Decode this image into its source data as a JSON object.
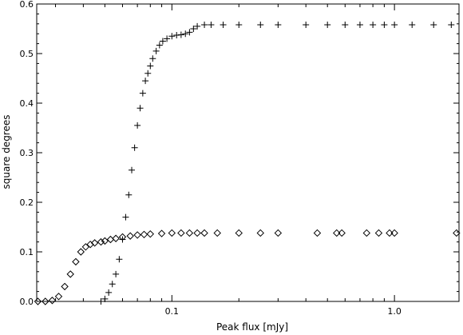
{
  "chart_data": {
    "type": "scatter",
    "title": "",
    "xlabel": "Peak flux [mJy]",
    "ylabel": "square degrees",
    "xscale": "log",
    "xlim": [
      0.0247,
      1.95
    ],
    "ylim": [
      0,
      0.6
    ],
    "grid": false,
    "legend": "none",
    "x_ticks": [
      0.1,
      1.0
    ],
    "x_tick_labels": [
      "0.1",
      "1.0"
    ],
    "y_ticks": [
      0,
      0.1,
      0.2,
      0.3,
      0.4,
      0.5,
      0.6
    ],
    "y_tick_labels": [
      "0.0",
      "0.1",
      "0.2",
      "0.3",
      "0.4",
      "0.5",
      "0.6"
    ],
    "series": [
      {
        "marker": "plus",
        "color": "#000000",
        "x": [
          0.048,
          0.05,
          0.052,
          0.054,
          0.056,
          0.058,
          0.06,
          0.062,
          0.064,
          0.066,
          0.068,
          0.07,
          0.072,
          0.074,
          0.076,
          0.078,
          0.08,
          0.082,
          0.085,
          0.088,
          0.091,
          0.095,
          0.1,
          0.105,
          0.11,
          0.115,
          0.12,
          0.125,
          0.13,
          0.14,
          0.15,
          0.17,
          0.2,
          0.25,
          0.3,
          0.4,
          0.5,
          0.6,
          0.7,
          0.8,
          0.9,
          1.0,
          1.2,
          1.5,
          1.8
        ],
        "y": [
          0.0,
          0.005,
          0.018,
          0.035,
          0.055,
          0.085,
          0.125,
          0.17,
          0.215,
          0.265,
          0.31,
          0.355,
          0.39,
          0.42,
          0.445,
          0.46,
          0.475,
          0.49,
          0.505,
          0.517,
          0.525,
          0.53,
          0.535,
          0.537,
          0.538,
          0.54,
          0.543,
          0.55,
          0.555,
          0.558,
          0.558,
          0.558,
          0.558,
          0.558,
          0.558,
          0.558,
          0.558,
          0.558,
          0.558,
          0.558,
          0.558,
          0.558,
          0.558,
          0.558,
          0.558
        ]
      },
      {
        "marker": "diamond",
        "color": "#000000",
        "x": [
          0.025,
          0.027,
          0.029,
          0.031,
          0.033,
          0.035,
          0.037,
          0.039,
          0.041,
          0.043,
          0.045,
          0.048,
          0.05,
          0.053,
          0.056,
          0.06,
          0.065,
          0.07,
          0.075,
          0.08,
          0.09,
          0.1,
          0.11,
          0.12,
          0.13,
          0.14,
          0.16,
          0.2,
          0.25,
          0.3,
          0.45,
          0.55,
          0.58,
          0.75,
          0.85,
          0.95,
          1.0,
          1.9
        ],
        "y": [
          0.0,
          0.0,
          0.002,
          0.01,
          0.03,
          0.055,
          0.08,
          0.1,
          0.11,
          0.115,
          0.118,
          0.12,
          0.122,
          0.125,
          0.127,
          0.13,
          0.132,
          0.134,
          0.135,
          0.136,
          0.137,
          0.138,
          0.138,
          0.138,
          0.138,
          0.138,
          0.138,
          0.138,
          0.138,
          0.138,
          0.138,
          0.138,
          0.138,
          0.138,
          0.138,
          0.138,
          0.138,
          0.138
        ]
      }
    ]
  }
}
